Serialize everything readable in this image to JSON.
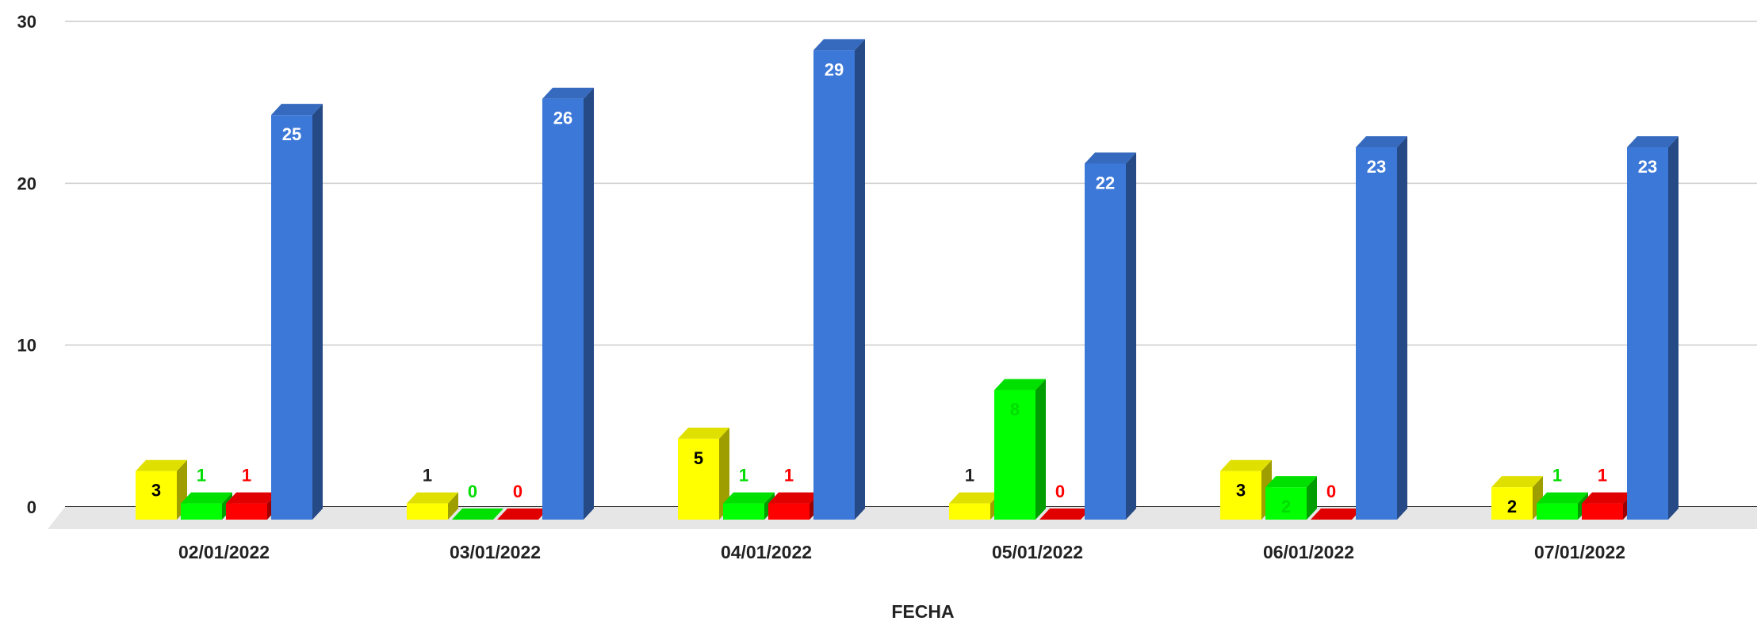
{
  "chart_data": {
    "type": "bar",
    "style": "3d-grouped-columns",
    "categories": [
      "02/01/2022",
      "03/01/2022",
      "04/01/2022",
      "05/01/2022",
      "06/01/2022",
      "07/01/2022"
    ],
    "series": [
      {
        "values": [
          3,
          1,
          5,
          1,
          3,
          2
        ],
        "color": "#ffff00",
        "label_color": "#000000"
      },
      {
        "values": [
          1,
          0,
          1,
          8,
          2,
          1
        ],
        "color": "#00ff00",
        "label_color": "#00dd00"
      },
      {
        "values": [
          1,
          0,
          1,
          0,
          0,
          1
        ],
        "color": "#ff0000",
        "label_color": "#ff0000"
      },
      {
        "values": [
          25,
          26,
          29,
          22,
          23,
          23
        ],
        "color": "#3c78d8",
        "label_color": "#ffffff"
      }
    ],
    "yticks": [
      "0",
      "10",
      "20",
      "30"
    ],
    "ylim": [
      0,
      30
    ],
    "xlabel": "FECHA",
    "grid": true,
    "legend": "none"
  }
}
